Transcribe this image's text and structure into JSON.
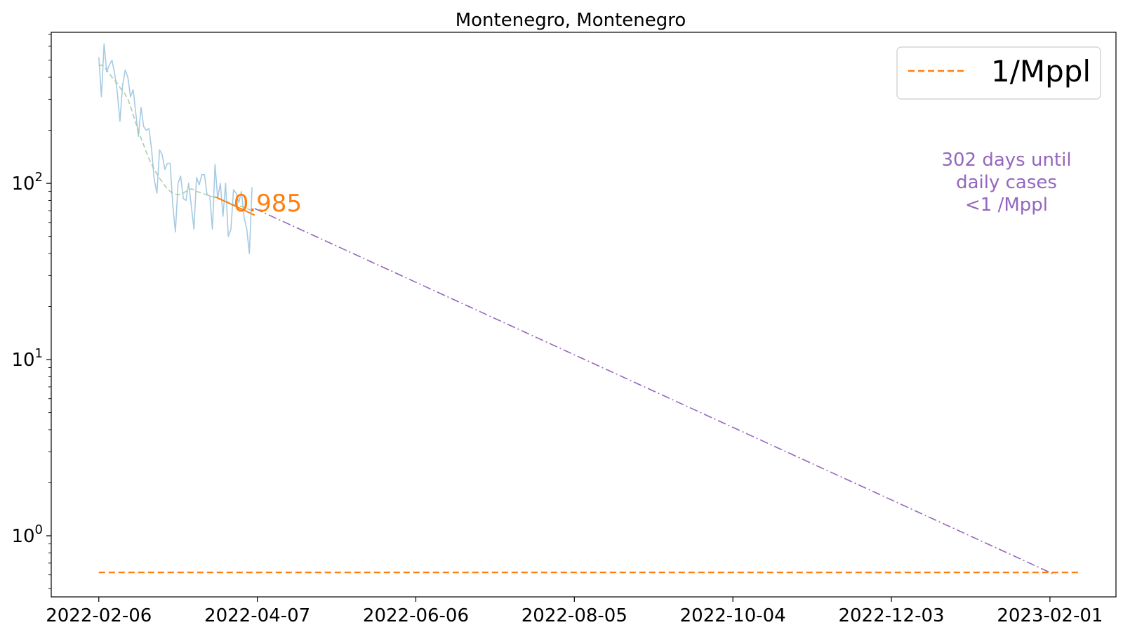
{
  "chart_data": {
    "type": "line",
    "title": "Montenegro, Montenegro",
    "xlabel": "",
    "ylabel": "",
    "y_scale": "log",
    "ylim": [
      0.45,
      720
    ],
    "xlim": [
      "2022-01-19",
      "2023-02-26"
    ],
    "x_ticks": [
      "2022-02-06",
      "2022-04-07",
      "2022-06-06",
      "2022-08-05",
      "2022-10-04",
      "2022-12-03",
      "2023-02-01"
    ],
    "y_ticks": [
      {
        "value": 1,
        "base": "10",
        "exp": "0"
      },
      {
        "value": 10,
        "base": "10",
        "exp": "1"
      },
      {
        "value": 100,
        "base": "10",
        "exp": "2"
      }
    ],
    "grid": false,
    "legend": {
      "placement": "top-right",
      "entries": [
        {
          "label": "1/Mppl",
          "color": "#ff7f0e",
          "style": "dashed"
        }
      ]
    },
    "series": [
      {
        "role": "daily_cases",
        "color": "#a6cbe3",
        "start_date": "2022-02-06",
        "values": [
          520,
          310,
          620,
          430,
          470,
          500,
          420,
          330,
          225,
          360,
          440,
          400,
          310,
          340,
          250,
          185,
          270,
          210,
          200,
          205,
          155,
          105,
          88,
          155,
          145,
          120,
          130,
          130,
          75,
          53,
          100,
          110,
          82,
          80,
          100,
          75,
          55,
          108,
          98,
          112,
          112,
          86,
          85,
          55,
          128,
          82,
          100,
          65,
          100,
          50,
          55,
          92,
          88,
          78,
          90,
          64,
          55,
          40,
          95
        ]
      },
      {
        "role": "smoothed_average",
        "color": "#9ac79a",
        "start_date": "2022-02-06",
        "values": [
          465,
          470,
          460,
          440,
          420,
          400,
          385,
          370,
          350,
          335,
          320,
          300,
          275,
          245,
          220,
          198,
          180,
          165,
          150,
          138,
          128,
          120,
          113,
          107,
          102,
          97,
          93,
          90,
          88,
          87,
          86,
          87,
          88,
          90,
          92,
          93,
          92,
          90,
          89,
          88,
          87,
          86,
          85,
          84,
          83,
          82,
          81,
          80,
          79,
          78,
          77,
          76,
          75,
          74,
          74,
          73,
          72,
          71,
          70
        ]
      },
      {
        "role": "recent_fit",
        "color": "#ff7f0e",
        "x": [
          "2022-03-22",
          "2022-04-06"
        ],
        "values": [
          84,
          66
        ]
      },
      {
        "role": "projection",
        "color": "#9467bd",
        "style": "dashdot",
        "x": [
          "2022-04-06",
          "2023-02-03"
        ],
        "values": [
          72,
          0.6
        ]
      },
      {
        "role": "threshold",
        "name": "1/Mppl",
        "color": "#ff7f0e",
        "style": "dashed",
        "x": [
          "2022-02-06",
          "2023-02-12"
        ],
        "values": [
          0.62,
          0.62
        ]
      }
    ],
    "annotations": [
      {
        "text": "0.985",
        "color": "#ff7f0e",
        "anchor_date": "2022-03-29",
        "anchor_value": 76
      },
      {
        "lines": [
          "302 days until",
          "daily cases",
          "<1 /Mppl"
        ],
        "color": "#9467bd",
        "position": "upper-right"
      }
    ]
  }
}
